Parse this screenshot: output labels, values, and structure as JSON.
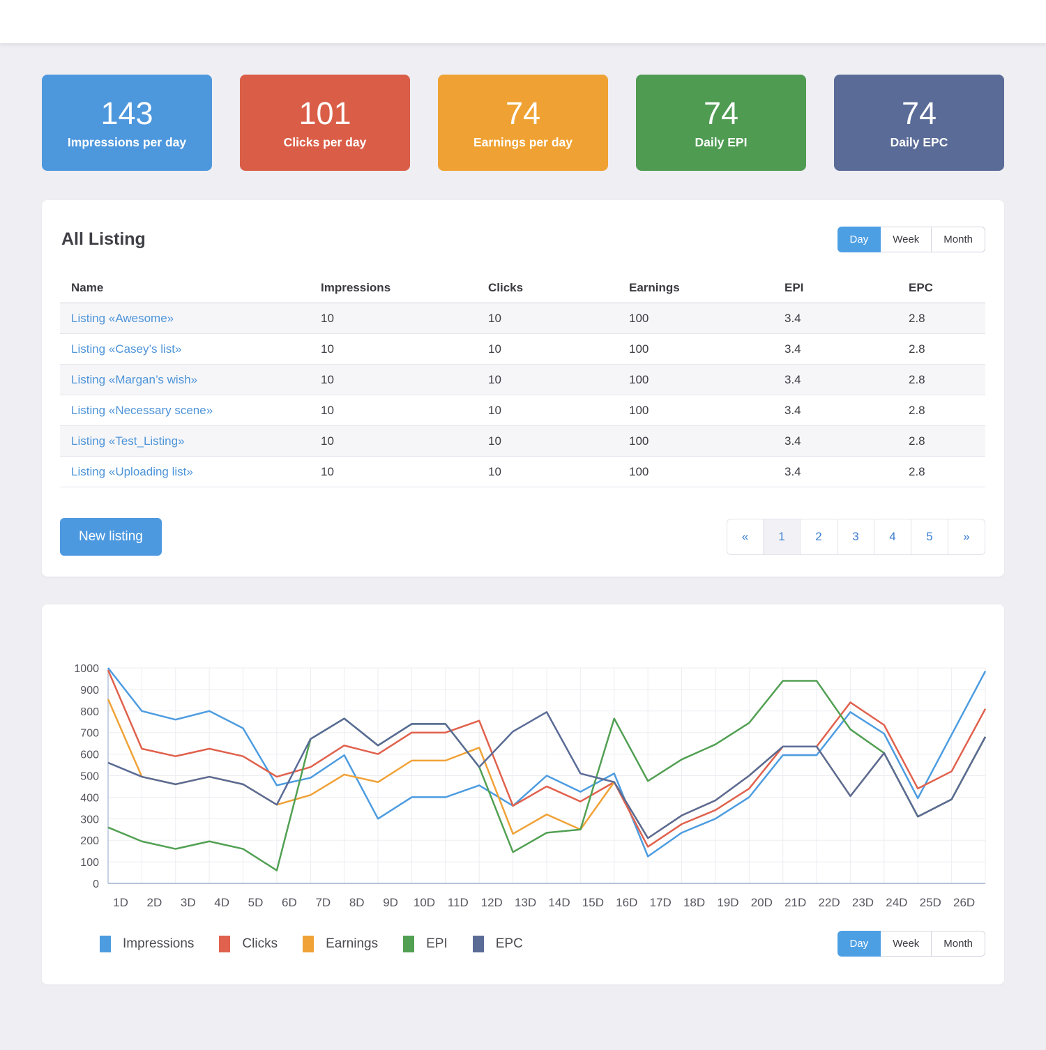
{
  "stats": [
    {
      "value": "143",
      "label": "Impressions per day",
      "color": "#4d97dd"
    },
    {
      "value": "101",
      "label": "Clicks per day",
      "color": "#da5e47"
    },
    {
      "value": "74",
      "label": "Earnings per day",
      "color": "#efa233"
    },
    {
      "value": "74",
      "label": "Daily EPI",
      "color": "#4f9b52"
    },
    {
      "value": "74",
      "label": "Daily EPC",
      "color": "#5a6b97"
    }
  ],
  "listing": {
    "title": "All Listing",
    "period_options": [
      "Day",
      "Week",
      "Month"
    ],
    "active_period": "Day",
    "table": {
      "headers": [
        "Name",
        "Impressions",
        "Clicks",
        "Earnings",
        "EPI",
        "EPC"
      ],
      "rows": [
        {
          "name": "Listing «Awesome»",
          "impressions": "10",
          "clicks": "10",
          "earnings": "100",
          "epi": "3.4",
          "epc": "2.8"
        },
        {
          "name": "Listing «Casey’s list»",
          "impressions": "10",
          "clicks": "10",
          "earnings": "100",
          "epi": "3.4",
          "epc": "2.8"
        },
        {
          "name": "Listing «Margan’s wish»",
          "impressions": "10",
          "clicks": "10",
          "earnings": "100",
          "epi": "3.4",
          "epc": "2.8"
        },
        {
          "name": "Listing «Necessary scene»",
          "impressions": "10",
          "clicks": "10",
          "earnings": "100",
          "epi": "3.4",
          "epc": "2.8"
        },
        {
          "name": "Listing «Test_Listing»",
          "impressions": "10",
          "clicks": "10",
          "earnings": "100",
          "epi": "3.4",
          "epc": "2.8"
        },
        {
          "name": "Listing «Uploading list»",
          "impressions": "10",
          "clicks": "10",
          "earnings": "100",
          "epi": "3.4",
          "epc": "2.8"
        }
      ]
    },
    "new_listing_label": "New listing",
    "pagination": {
      "prev": "«",
      "pages": [
        "1",
        "2",
        "3",
        "4",
        "5"
      ],
      "next": "»",
      "active": "1"
    }
  },
  "chart_panel": {
    "period_options": [
      "Day",
      "Week",
      "Month"
    ],
    "active_period": "Day"
  },
  "chart_data": {
    "type": "line",
    "x_labels": [
      "1D",
      "2D",
      "3D",
      "4D",
      "5D",
      "6D",
      "7D",
      "8D",
      "9D",
      "10D",
      "11D",
      "12D",
      "13D",
      "14D",
      "15D",
      "16D",
      "17D",
      "18D",
      "19D",
      "20D",
      "21D",
      "22D",
      "23D",
      "24D",
      "25D",
      "26D",
      ""
    ],
    "ylim": [
      0,
      1000
    ],
    "y_tick_step": 100,
    "grid": true,
    "legend_position": "bottom",
    "series": [
      {
        "name": "Impressions",
        "color": "#4d9ce0",
        "values": [
          1000,
          800,
          760,
          800,
          720,
          455,
          490,
          595,
          300,
          400,
          400,
          455,
          360,
          500,
          425,
          510,
          125,
          235,
          300,
          400,
          595,
          595,
          795,
          695,
          395,
          690,
          985
        ]
      },
      {
        "name": "Clicks",
        "color": "#e0614d",
        "values": [
          990,
          625,
          590,
          625,
          590,
          495,
          540,
          640,
          600,
          700,
          700,
          755,
          360,
          450,
          380,
          470,
          170,
          275,
          340,
          440,
          635,
          635,
          840,
          735,
          440,
          520,
          810
        ]
      },
      {
        "name": "Earnings",
        "color": "#f0a237",
        "values": [
          855,
          495,
          460,
          495,
          460,
          365,
          410,
          505,
          470,
          570,
          570,
          630,
          230,
          320,
          250,
          470,
          210,
          315,
          385,
          500,
          635,
          635,
          405,
          605,
          310,
          390,
          680
        ]
      },
      {
        "name": "EPI",
        "color": "#52a053",
        "values": [
          260,
          195,
          160,
          195,
          160,
          60,
          670,
          765,
          640,
          740,
          740,
          540,
          145,
          235,
          250,
          765,
          475,
          575,
          645,
          745,
          940,
          940,
          715,
          605,
          310,
          390,
          680
        ]
      },
      {
        "name": "EPC",
        "color": "#5a6b96",
        "values": [
          560,
          495,
          460,
          495,
          460,
          365,
          670,
          765,
          640,
          740,
          740,
          540,
          705,
          795,
          510,
          470,
          210,
          315,
          385,
          500,
          635,
          635,
          405,
          605,
          310,
          390,
          680
        ]
      }
    ]
  }
}
